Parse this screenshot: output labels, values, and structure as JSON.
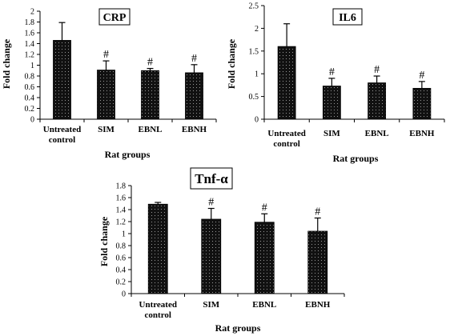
{
  "chart_data": [
    {
      "type": "bar",
      "title": "CRP",
      "xlabel": "Rat groups",
      "ylabel": "Fold change",
      "categories": [
        "Untreated\ncontrol",
        "SIM",
        "EBNL",
        "EBNH"
      ],
      "values": [
        1.46,
        0.91,
        0.9,
        0.86
      ],
      "errors": [
        0.33,
        0.17,
        0.04,
        0.15
      ],
      "annotations": [
        "",
        "#",
        "#",
        "#"
      ],
      "ylim": [
        0,
        2
      ],
      "yticks": [
        "0",
        "0.2",
        "0.4",
        "0.6",
        "0.8",
        "1",
        "1.2",
        "1.4",
        "1.6",
        "1.8",
        "2"
      ],
      "grid": false
    },
    {
      "type": "bar",
      "title": "IL6",
      "xlabel": "Rat groups",
      "ylabel": "Fold change",
      "categories": [
        "Untreated\ncontrol",
        "SIM",
        "EBNL",
        "EBNH"
      ],
      "values": [
        1.6,
        0.73,
        0.8,
        0.68
      ],
      "errors": [
        0.5,
        0.17,
        0.15,
        0.15
      ],
      "annotations": [
        "",
        "#",
        "#",
        "#"
      ],
      "ylim": [
        0,
        2.5
      ],
      "yticks": [
        "0",
        "0.5",
        "1",
        "1.5",
        "2",
        "2.5"
      ],
      "grid": false
    },
    {
      "type": "bar",
      "title": "Tnf-α",
      "xlabel": "Rat groups",
      "ylabel": "Fold change",
      "categories": [
        "Untreated\ncontrol",
        "SIM",
        "EBNL",
        "EBNH"
      ],
      "values": [
        1.49,
        1.24,
        1.19,
        1.04
      ],
      "errors": [
        0.03,
        0.18,
        0.14,
        0.22
      ],
      "annotations": [
        "",
        "#",
        "#",
        "#"
      ],
      "ylim": [
        0,
        1.8
      ],
      "yticks": [
        "0",
        "0.2",
        "0.4",
        "0.6",
        "0.8",
        "1",
        "1.2",
        "1.4",
        "1.6",
        "1.8"
      ],
      "grid": false
    }
  ]
}
